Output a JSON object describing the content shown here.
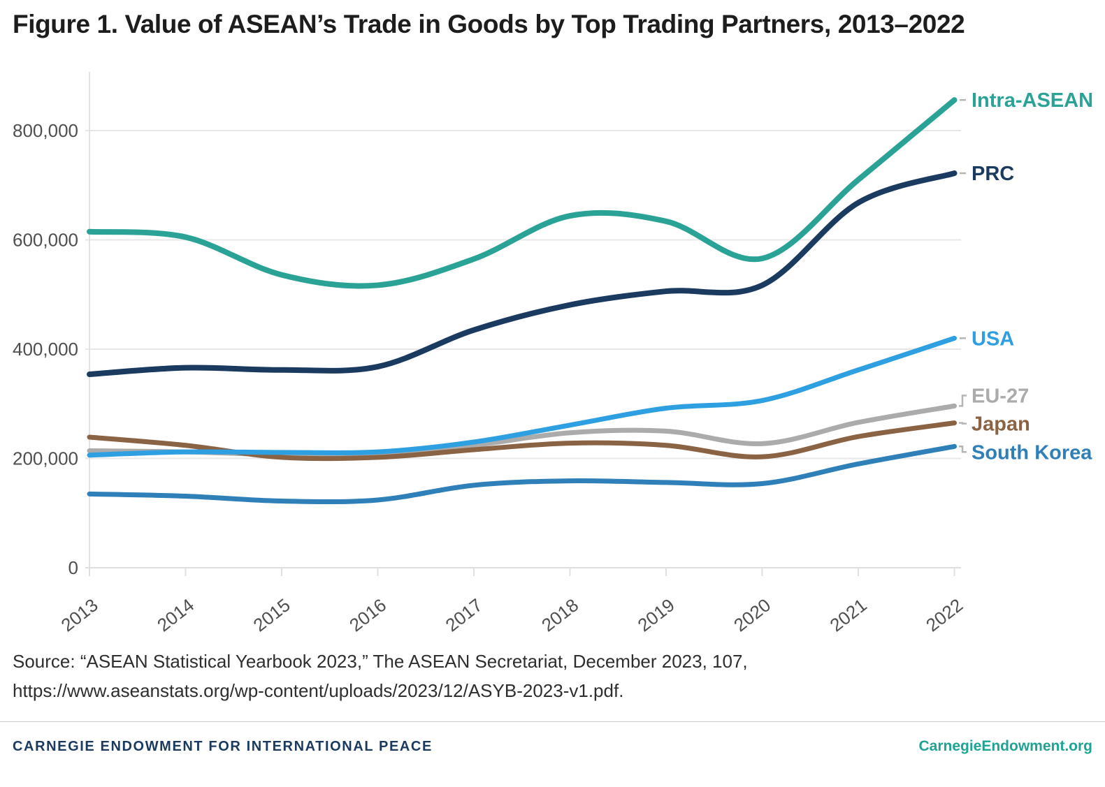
{
  "title": "Figure 1. Value of ASEAN’s Trade in Goods by Top Trading Partners, 2013–2022",
  "source": {
    "line1": "Source: “ASEAN Statistical Yearbook 2023,” The ASEAN Secretariat, December 2023, 107,",
    "line2": "https://www.aseanstats.org/wp-content/uploads/2023/12/ASYB-2023-v1.pdf."
  },
  "footer": {
    "org_name": "CARNEGIE ENDOWMENT FOR INTERNATIONAL PEACE",
    "website": "CarnegieEndowment.org",
    "org_color": "#1b3a5f",
    "website_color": "#1fa493"
  },
  "chart_data": {
    "type": "line",
    "title": "Figure 1. Value of ASEAN’s Trade in Goods by Top Trading Partners, 2013–2022",
    "xlabel": "",
    "ylabel": "",
    "x": [
      2013,
      2014,
      2015,
      2016,
      2017,
      2018,
      2019,
      2020,
      2021,
      2022
    ],
    "x_labels": [
      "2013",
      "2014",
      "2015",
      "2016",
      "2017",
      "2018",
      "2019",
      "2020",
      "2021",
      "2022"
    ],
    "ylim": [
      0,
      880000
    ],
    "yticks": [
      0,
      200000,
      400000,
      600000,
      800000
    ],
    "ytick_labels": [
      "0",
      "200,000",
      "400,000",
      "600,000",
      "800,000"
    ],
    "grid": "horizontal",
    "legend_position": "right-of-line-ends",
    "series": [
      {
        "name": "Intra-ASEAN",
        "color": "#2aa396",
        "values": [
          615000,
          605000,
          536000,
          517000,
          565000,
          644000,
          634000,
          566000,
          710000,
          856000
        ]
      },
      {
        "name": "PRC",
        "color": "#1b3a5f",
        "values": [
          354000,
          366000,
          362000,
          368000,
          435000,
          481000,
          506000,
          517000,
          668000,
          722000
        ]
      },
      {
        "name": "USA",
        "color": "#2e9fe1",
        "values": [
          206000,
          212000,
          211000,
          212000,
          230000,
          261000,
          292000,
          306000,
          362000,
          420000
        ]
      },
      {
        "name": "EU-27",
        "color": "#ababab",
        "values": [
          214000,
          212000,
          207000,
          207000,
          224000,
          247000,
          250000,
          227000,
          266000,
          296000
        ]
      },
      {
        "name": "Japan",
        "color": "#8a6244",
        "values": [
          239000,
          224000,
          202000,
          202000,
          216000,
          228000,
          224000,
          203000,
          240000,
          265000
        ]
      },
      {
        "name": "South Korea",
        "color": "#2f7fb8",
        "values": [
          135000,
          131000,
          122000,
          124000,
          151000,
          159000,
          156000,
          154000,
          190000,
          222000
        ]
      }
    ]
  }
}
